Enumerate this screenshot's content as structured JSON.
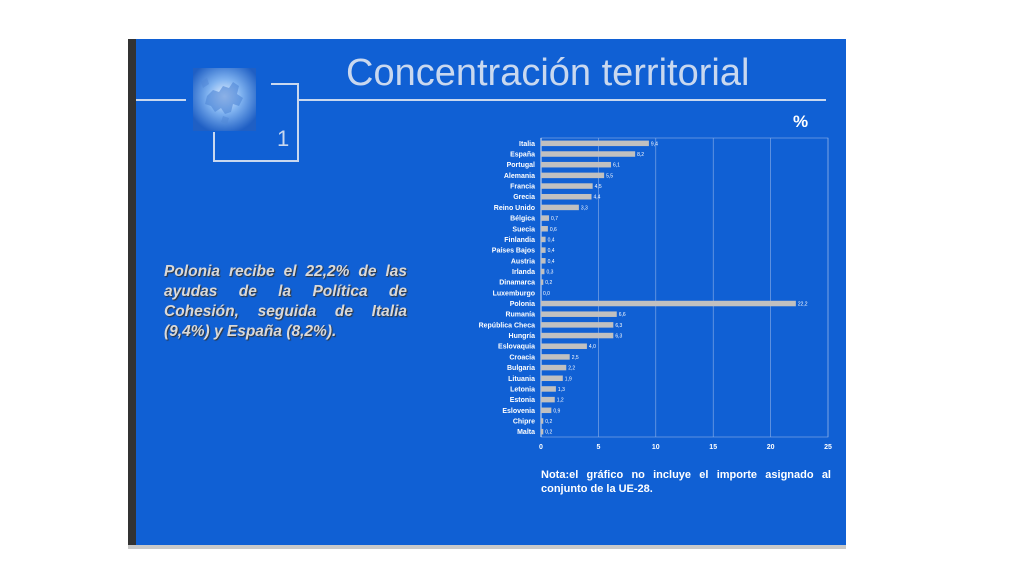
{
  "slide": {
    "title": "Concentración territorial",
    "number": "1",
    "headline": "Polonia recibe el 22,2% de las ayudas de la Política de Cohesión, seguida de Italia (9,4%) y España (8,2%).",
    "unit_label": "%",
    "note": "Nota:el gráfico no incluye el importe asignado al conjunto de la UE-28.",
    "colors": {
      "background": "#1060d4",
      "bar": "#c0c0c0",
      "text": "#ffffff"
    },
    "icons": [
      "eu-map-icon"
    ]
  },
  "chart_data": {
    "type": "bar",
    "orientation": "horizontal",
    "categories": [
      "Italia",
      "España",
      "Portugal",
      "Alemania",
      "Francia",
      "Grecia",
      "Reino Unido",
      "Bélgica",
      "Suecia",
      "Finlandia",
      "Países Bajos",
      "Austria",
      "Irlanda",
      "Dinamarca",
      "Luxemburgo",
      "Polonia",
      "Rumanía",
      "República Checa",
      "Hungría",
      "Eslovaquia",
      "Croacia",
      "Bulgaria",
      "Lituania",
      "Letonia",
      "Estonia",
      "Eslovenia",
      "Chipre",
      "Malta"
    ],
    "values": [
      9.4,
      8.2,
      6.1,
      5.5,
      4.5,
      4.4,
      3.3,
      0.7,
      0.6,
      0.4,
      0.4,
      0.4,
      0.3,
      0.2,
      0.0,
      22.2,
      6.6,
      6.3,
      6.3,
      4.0,
      2.5,
      2.2,
      1.9,
      1.3,
      1.2,
      0.9,
      0.2,
      0.2
    ],
    "value_labels": [
      "9,4",
      "8,2",
      "6,1",
      "5,5",
      "4,5",
      "4,4",
      "3,3",
      "0,7",
      "0,6",
      "0,4",
      "0,4",
      "0,4",
      "0,3",
      "0,2",
      "0,0",
      "22,2",
      "6,6",
      "6,3",
      "6,3",
      "4,0",
      "2,5",
      "2,2",
      "1,9",
      "1,3",
      "1,2",
      "0,9",
      "0,2",
      "0,2"
    ],
    "xlim": [
      0,
      25
    ],
    "xticks": [
      0,
      5,
      10,
      15,
      20,
      25
    ],
    "grid": true,
    "xlabel": "",
    "ylabel": ""
  }
}
